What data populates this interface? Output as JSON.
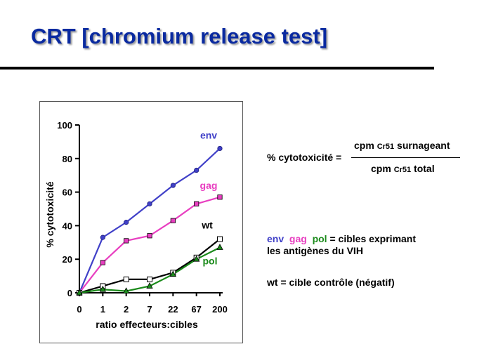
{
  "slide": {
    "title": "CRT [chromium release test]"
  },
  "formula": {
    "label": "% cytotoxicité =",
    "numerator_prefix": "cpm ",
    "numerator_isotope": "Cr51",
    "numerator_suffix": " surnageant",
    "denominator_prefix": "cpm ",
    "denominator_isotope": "Cr51",
    "denominator_suffix": " total"
  },
  "legend_text": {
    "env": "env",
    "gag": "gag",
    "pol": "pol",
    "line1_rest": "= cibles exprimant",
    "line2": "les antigènes du VIH",
    "wt_line": "wt = cible contrôle (négatif)"
  },
  "chart_data": {
    "type": "line",
    "title": "",
    "xlabel": "ratio effecteurs:cibles",
    "ylabel": "% cytotoxicité",
    "categories": [
      "0",
      "1",
      "2",
      "7",
      "22",
      "67",
      "200"
    ],
    "ylim": [
      0,
      100
    ],
    "yticks": [
      0,
      20,
      40,
      60,
      80,
      100
    ],
    "grid": false,
    "series": [
      {
        "name": "env",
        "color": "#4040c8",
        "marker": "circle",
        "values": [
          0,
          33,
          42,
          53,
          64,
          73,
          86
        ]
      },
      {
        "name": "gag",
        "color": "#e83ec0",
        "marker": "square",
        "values": [
          0,
          18,
          31,
          34,
          43,
          53,
          57
        ]
      },
      {
        "name": "wt",
        "color": "#000000",
        "marker": "open-square",
        "values": [
          0,
          4,
          8,
          8,
          12,
          21,
          32
        ]
      },
      {
        "name": "pol",
        "color": "#1a8a1a",
        "marker": "triangle",
        "values": [
          0,
          2,
          1,
          4,
          11,
          20,
          27
        ]
      }
    ]
  }
}
